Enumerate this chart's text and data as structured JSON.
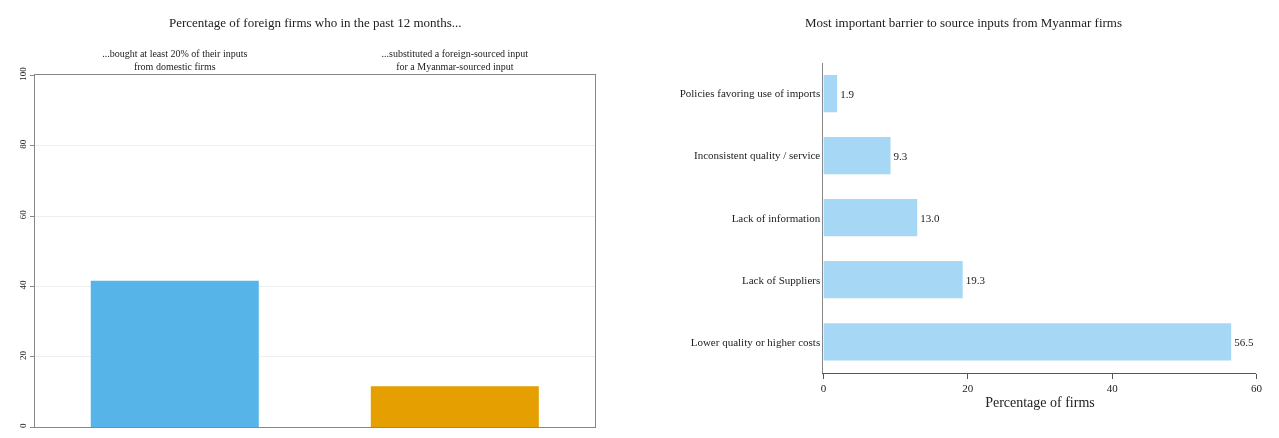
{
  "chart_data": [
    {
      "type": "bar",
      "title": "Percentage of foreign firms who in the past 12 months...",
      "categories": [
        "...bought at least 20% of their inputs\nfrom domestic firms",
        "...substituted a foreign-sourced input\nfor a Myanmar-sourced input"
      ],
      "values": [
        41.6,
        11.6
      ],
      "colors": [
        "#56b4e9",
        "#e69f00"
      ],
      "ylim": [
        0,
        100
      ],
      "yticks": [
        0,
        20,
        40,
        60,
        80,
        100
      ],
      "grid": "y"
    },
    {
      "type": "bar",
      "orientation": "horizontal",
      "title": "Most important barrier to source inputs from Myanmar firms",
      "xlabel": "Percentage of firms",
      "categories": [
        "Policies favoring use of imports",
        "Inconsistent quality / service",
        "Lack of information",
        "Lack of Suppliers",
        "Lower quality or higher costs"
      ],
      "values": [
        1.9,
        9.3,
        13.0,
        19.3,
        56.5
      ],
      "value_labels": [
        "1.9",
        "9.3",
        "13.0",
        "19.3",
        "56.5"
      ],
      "color": "#a6d8f5",
      "xlim": [
        0,
        60
      ],
      "xticks": [
        0,
        20,
        40,
        60
      ],
      "grid": false
    }
  ]
}
